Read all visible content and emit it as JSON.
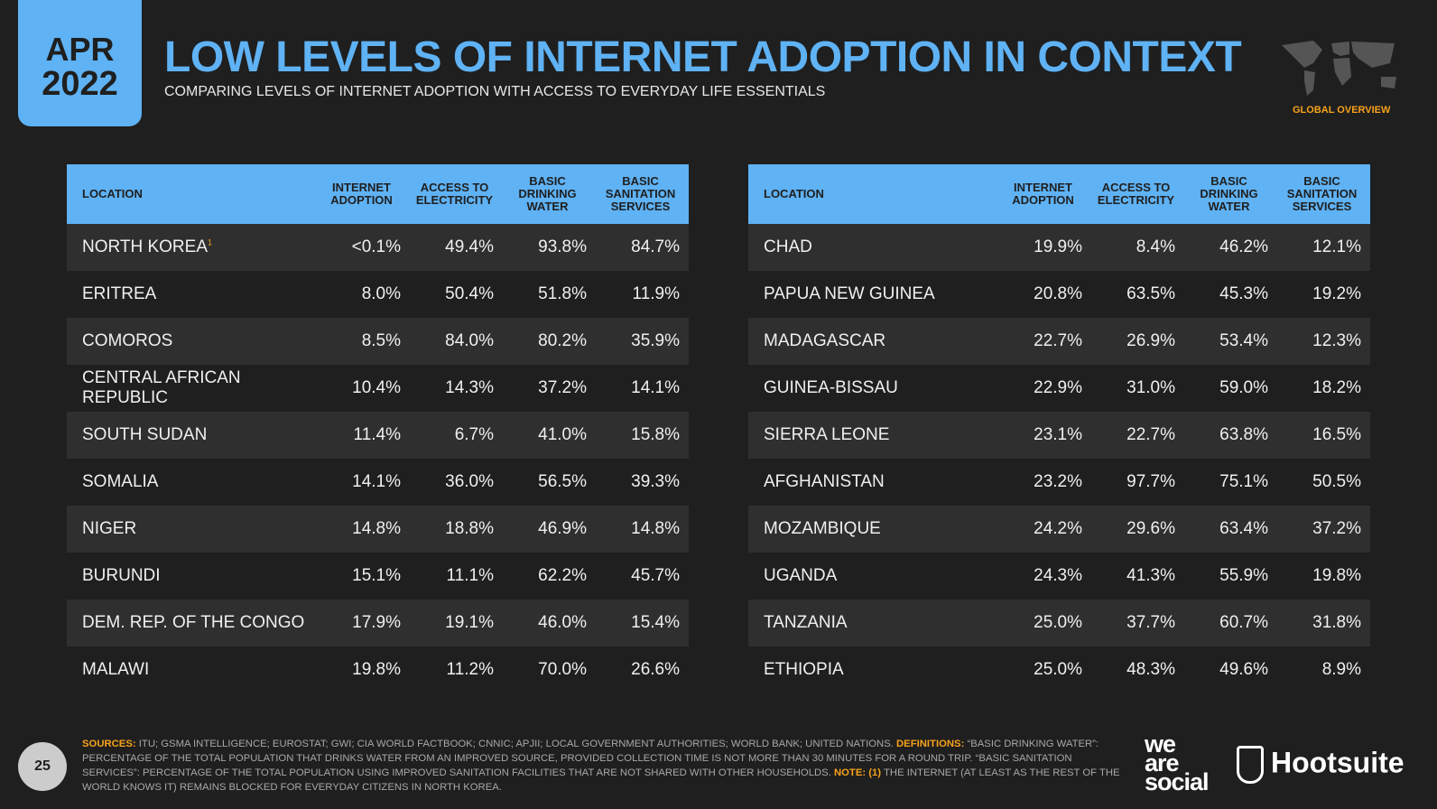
{
  "header": {
    "month": "APR",
    "year": "2022",
    "title": "LOW LEVELS OF INTERNET ADOPTION IN CONTEXT",
    "subtitle": "COMPARING LEVELS OF INTERNET ADOPTION WITH ACCESS TO EVERYDAY LIFE ESSENTIALS",
    "section": "GLOBAL OVERVIEW",
    "map_icon": "world-map-icon"
  },
  "columns": [
    "LOCATION",
    "INTERNET ADOPTION",
    "ACCESS TO ELECTRICITY",
    "BASIC DRINKING WATER",
    "BASIC SANITATION SERVICES"
  ],
  "left_table": [
    [
      "NORTH KOREA",
      "<0.1%",
      "49.4%",
      "93.8%",
      "84.7%"
    ],
    [
      "ERITREA",
      "8.0%",
      "50.4%",
      "51.8%",
      "11.9%"
    ],
    [
      "COMOROS",
      "8.5%",
      "84.0%",
      "80.2%",
      "35.9%"
    ],
    [
      "CENTRAL AFRICAN REPUBLIC",
      "10.4%",
      "14.3%",
      "37.2%",
      "14.1%"
    ],
    [
      "SOUTH SUDAN",
      "11.4%",
      "6.7%",
      "41.0%",
      "15.8%"
    ],
    [
      "SOMALIA",
      "14.1%",
      "36.0%",
      "56.5%",
      "39.3%"
    ],
    [
      "NIGER",
      "14.8%",
      "18.8%",
      "46.9%",
      "14.8%"
    ],
    [
      "BURUNDI",
      "15.1%",
      "11.1%",
      "62.2%",
      "45.7%"
    ],
    [
      "DEM. REP. OF THE CONGO",
      "17.9%",
      "19.1%",
      "46.0%",
      "15.4%"
    ],
    [
      "MALAWI",
      "19.8%",
      "11.2%",
      "70.0%",
      "26.6%"
    ]
  ],
  "north_korea_note": "1",
  "right_table": [
    [
      "CHAD",
      "19.9%",
      "8.4%",
      "46.2%",
      "12.1%"
    ],
    [
      "PAPUA NEW GUINEA",
      "20.8%",
      "63.5%",
      "45.3%",
      "19.2%"
    ],
    [
      "MADAGASCAR",
      "22.7%",
      "26.9%",
      "53.4%",
      "12.3%"
    ],
    [
      "GUINEA-BISSAU",
      "22.9%",
      "31.0%",
      "59.0%",
      "18.2%"
    ],
    [
      "SIERRA LEONE",
      "23.1%",
      "22.7%",
      "63.8%",
      "16.5%"
    ],
    [
      "AFGHANISTAN",
      "23.2%",
      "97.7%",
      "75.1%",
      "50.5%"
    ],
    [
      "MOZAMBIQUE",
      "24.2%",
      "29.6%",
      "63.4%",
      "37.2%"
    ],
    [
      "UGANDA",
      "24.3%",
      "41.3%",
      "55.9%",
      "19.8%"
    ],
    [
      "TANZANIA",
      "25.0%",
      "37.7%",
      "60.7%",
      "31.8%"
    ],
    [
      "ETHIOPIA",
      "25.0%",
      "48.3%",
      "49.6%",
      "8.9%"
    ]
  ],
  "footer": {
    "page": "25",
    "sources_label": "SOURCES:",
    "sources": " ITU; GSMA INTELLIGENCE; EUROSTAT; GWI; CIA WORLD FACTBOOK; CNNIC; APJII; LOCAL GOVERNMENT AUTHORITIES; WORLD BANK; UNITED NATIONS. ",
    "definitions_label": "DEFINITIONS:",
    "definitions": " “BASIC DRINKING WATER”: PERCENTAGE OF THE TOTAL POPULATION THAT DRINKS WATER FROM AN IMPROVED SOURCE, PROVIDED COLLECTION TIME IS NOT MORE THAN 30 MINUTES FOR A ROUND TRIP. “BASIC SANITATION SERVICES”: PERCENTAGE OF THE TOTAL POPULATION USING IMPROVED SANITATION FACILITIES THAT ARE NOT SHARED WITH OTHER HOUSEHOLDS. ",
    "note_label": "NOTE:",
    "note_num": " (1)",
    "note": " THE INTERNET (AT LEAST AS THE REST OF THE WORLD KNOWS IT) REMAINS BLOCKED FOR EVERYDAY CITIZENS IN NORTH KOREA.",
    "logo1": "we are social",
    "logo2": "Hootsuite"
  },
  "colors": {
    "accent": "#5fb2f4",
    "highlight": "#f7a21b",
    "background": "#1f1f1f"
  }
}
